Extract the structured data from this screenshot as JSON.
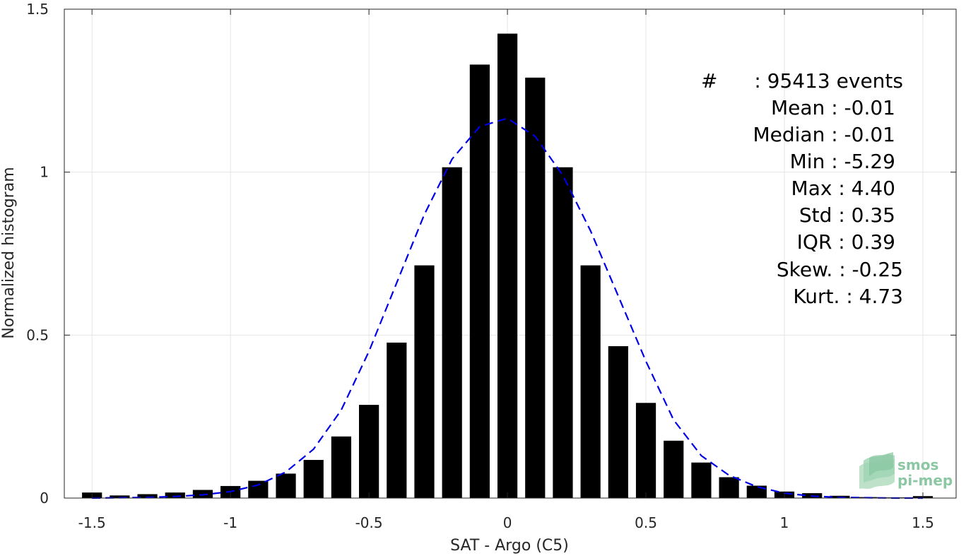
{
  "chart_data": {
    "type": "bar",
    "xlabel": "SAT - Argo (C5)",
    "ylabel": "Normalized histogram",
    "xlim": [
      -1.6,
      1.62
    ],
    "ylim": [
      0,
      1.5
    ],
    "xticks": [
      -1.5,
      -1,
      -0.5,
      0,
      0.5,
      1,
      1.5
    ],
    "xtick_labels": [
      "-1.5",
      "-1",
      "-0.5",
      "0",
      "0.5",
      "1",
      "1.5"
    ],
    "yticks": [
      0,
      0.5,
      1,
      1.5
    ],
    "ytick_labels": [
      "0",
      "0.5",
      "1",
      "1.5"
    ],
    "grid": true,
    "bar_color": "#000000",
    "series": [
      {
        "type": "bar",
        "x": [
          -1.5,
          -1.4,
          -1.3,
          -1.2,
          -1.1,
          -1.0,
          -0.9,
          -0.8,
          -0.7,
          -0.6,
          -0.5,
          -0.4,
          -0.3,
          -0.2,
          -0.1,
          0.0,
          0.1,
          0.2,
          0.3,
          0.4,
          0.5,
          0.6,
          0.7,
          0.8,
          0.9,
          1.0,
          1.1,
          1.2,
          1.3,
          1.4,
          1.5
        ],
        "values": [
          0.017,
          0.008,
          0.012,
          0.017,
          0.025,
          0.037,
          0.053,
          0.075,
          0.117,
          0.189,
          0.286,
          0.477,
          0.714,
          1.015,
          1.33,
          1.425,
          1.29,
          1.015,
          0.714,
          0.466,
          0.292,
          0.176,
          0.109,
          0.064,
          0.038,
          0.02,
          0.015,
          0.007,
          0.003,
          0.002,
          0.006
        ]
      },
      {
        "type": "line",
        "style": "dashed",
        "color": "#0000e6",
        "x": [
          -1.5,
          -1.4,
          -1.3,
          -1.2,
          -1.1,
          -1.0,
          -0.9,
          -0.8,
          -0.7,
          -0.6,
          -0.5,
          -0.4,
          -0.3,
          -0.2,
          -0.1,
          0.0,
          0.1,
          0.2,
          0.3,
          0.4,
          0.5,
          0.6,
          0.7,
          0.8,
          0.9,
          1.0,
          1.1,
          1.2,
          1.3,
          1.4,
          1.5
        ],
        "values": [
          0.0,
          0.001,
          0.002,
          0.005,
          0.01,
          0.02,
          0.04,
          0.08,
          0.15,
          0.27,
          0.45,
          0.66,
          0.87,
          1.04,
          1.14,
          1.165,
          1.11,
          0.99,
          0.82,
          0.62,
          0.42,
          0.24,
          0.13,
          0.07,
          0.035,
          0.015,
          0.006,
          0.002,
          0.001,
          0.0,
          0.0
        ]
      }
    ]
  },
  "stats": {
    "count_symbol": "#",
    "count_text": ":  95413 events",
    "lines": [
      "Mean : -0.01",
      "Median : -0.01",
      "Min : -5.29",
      "Max : 4.40",
      "Std : 0.35",
      "IQR : 0.39",
      "Skew. : -0.25",
      "Kurt. : 4.73"
    ]
  },
  "logo": {
    "line1": "smos",
    "line2": "pi-mep"
  }
}
